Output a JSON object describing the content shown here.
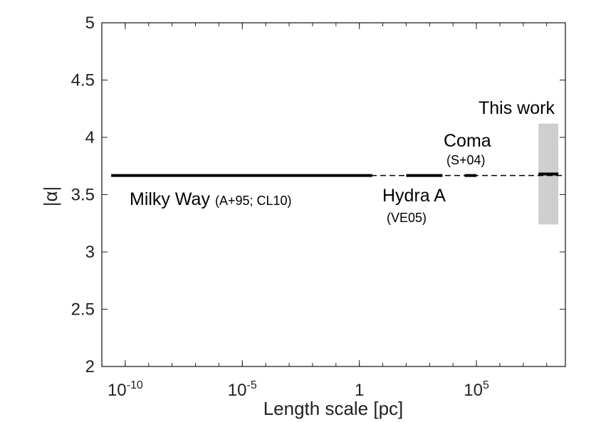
{
  "chart_data": {
    "type": "line",
    "xlabel": "Length scale [pc]",
    "ylabel": "|α|",
    "x_scale": "log10",
    "xlim_log10": [
      -11,
      8.8
    ],
    "ylim": [
      2,
      5
    ],
    "x_ticks": [
      {
        "value_log10": -10,
        "base": "10",
        "exp": "-10"
      },
      {
        "value_log10": -5,
        "base": "10",
        "exp": "-5"
      },
      {
        "value_log10": 0,
        "base": "1",
        "exp": ""
      },
      {
        "value_log10": 5,
        "base": "10",
        "exp": "5"
      }
    ],
    "y_ticks": [
      {
        "value": 2,
        "label": "2"
      },
      {
        "value": 2.5,
        "label": "2.5"
      },
      {
        "value": 3,
        "label": "3"
      },
      {
        "value": 3.5,
        "label": "3.5"
      },
      {
        "value": 4,
        "label": "4"
      },
      {
        "value": 4.5,
        "label": "4.5"
      },
      {
        "value": 5,
        "label": "5"
      }
    ],
    "reference_line": {
      "y": 3.667,
      "style": "dashed"
    },
    "series": [
      {
        "name": "Milky Way",
        "ref": "(A+95; CL10)",
        "x_log10_range": [
          -10.6,
          0.55
        ],
        "y": 3.667
      },
      {
        "name": "Hydra A",
        "ref": "(VE05)",
        "x_log10_range": [
          2.0,
          3.55
        ],
        "y": 3.667
      },
      {
        "name": "Coma",
        "ref": "(S+04)",
        "x_log10_range": [
          4.5,
          5.0
        ],
        "y": 3.667
      },
      {
        "name": "This work",
        "ref": "",
        "x_log10_range": [
          7.65,
          8.5
        ],
        "y": 3.68,
        "band": [
          3.24,
          4.12
        ]
      }
    ]
  }
}
